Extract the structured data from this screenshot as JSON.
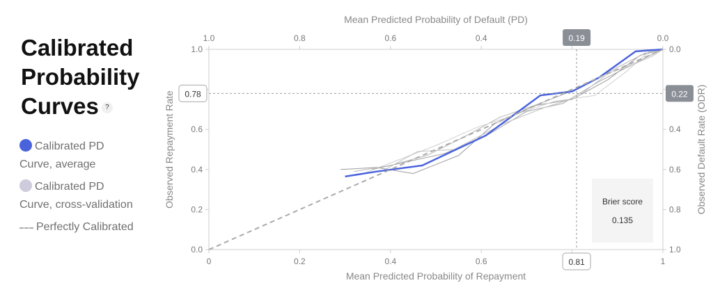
{
  "title_line1": "Calibrated",
  "title_line2": "Probability",
  "title_line3": "Curves",
  "help_mark": "?",
  "legend": [
    {
      "label_line1": "Calibrated PD",
      "label_line2": "Curve, average",
      "color": "#4a63dd"
    },
    {
      "label_line1": "Calibrated PD",
      "label_line2": "Curve, cross-validation",
      "color": "#cdcbdc"
    },
    {
      "label_line1": "Perfectly Calibrated",
      "label_line2": "",
      "color": "#aaaaaa"
    }
  ],
  "brier": {
    "label": "Brier score",
    "value": "0.135"
  },
  "chart_data": {
    "type": "line",
    "xlabel": "Mean Predicted Probability of Repayment",
    "ylabel": "Observed Repayment Rate",
    "x2label": "Mean Predicted Probability of Default (PD)",
    "y2label": "Observed Default Rate (ODR)",
    "xlim": [
      0,
      1
    ],
    "ylim": [
      0,
      1
    ],
    "x_ticks": [
      "0",
      "0.2",
      "0.4",
      "0.6",
      "0.8",
      "1"
    ],
    "y_ticks": [
      "0.0",
      "0.2",
      "0.4",
      "0.6",
      "0.8",
      "1.0"
    ],
    "x2_ticks": [
      "1.0",
      "0.8",
      "0.6",
      "0.4",
      "0.2",
      "0.0"
    ],
    "y2_ticks": [
      "1.0",
      "0.8",
      "0.6",
      "0.4",
      "0.2",
      "0.0"
    ],
    "grid": false,
    "crosshair": {
      "x": 0.81,
      "y": 0.78,
      "x_label": "0.81",
      "y_label": "0.78",
      "x2_label": "0.19",
      "y2_label": "0.22"
    },
    "series": [
      {
        "name": "Calibrated PD Curve, average",
        "color": "#4a63dd",
        "x": [
          0.3,
          0.37,
          0.47,
          0.61,
          0.73,
          0.8,
          0.86,
          0.94,
          1.0
        ],
        "y": [
          0.365,
          0.39,
          0.42,
          0.57,
          0.77,
          0.79,
          0.86,
          0.99,
          1.0
        ]
      },
      {
        "name": "Perfectly Calibrated",
        "color": "#aaaaaa",
        "dashed": true,
        "x": [
          0,
          1
        ],
        "y": [
          0,
          1
        ]
      }
    ],
    "cv_series": [
      {
        "x": [
          0.29,
          0.37,
          0.45,
          0.55,
          0.63,
          0.72,
          0.8,
          0.88,
          0.95,
          1.0
        ],
        "y": [
          0.4,
          0.41,
          0.38,
          0.47,
          0.63,
          0.72,
          0.75,
          0.85,
          0.97,
          1.0
        ]
      },
      {
        "x": [
          0.32,
          0.4,
          0.48,
          0.56,
          0.64,
          0.73,
          0.82,
          0.9,
          0.96,
          1.0
        ],
        "y": [
          0.39,
          0.42,
          0.47,
          0.56,
          0.66,
          0.73,
          0.81,
          0.91,
          0.98,
          1.0
        ]
      },
      {
        "x": [
          0.34,
          0.42,
          0.5,
          0.59,
          0.67,
          0.76,
          0.85,
          0.92,
          0.97,
          1.0
        ],
        "y": [
          0.38,
          0.45,
          0.52,
          0.61,
          0.67,
          0.74,
          0.77,
          0.89,
          0.99,
          1.0
        ]
      },
      {
        "x": [
          0.36,
          0.44,
          0.52,
          0.62,
          0.7,
          0.78,
          0.86,
          0.93,
          0.98,
          1.0
        ],
        "y": [
          0.4,
          0.44,
          0.48,
          0.58,
          0.69,
          0.73,
          0.84,
          0.92,
          0.98,
          1.0
        ]
      },
      {
        "x": [
          0.38,
          0.46,
          0.54,
          0.65,
          0.74,
          0.81,
          0.88,
          0.94,
          0.98,
          1.0
        ],
        "y": [
          0.39,
          0.49,
          0.5,
          0.63,
          0.71,
          0.76,
          0.88,
          0.93,
          0.97,
          1.0
        ]
      }
    ]
  }
}
